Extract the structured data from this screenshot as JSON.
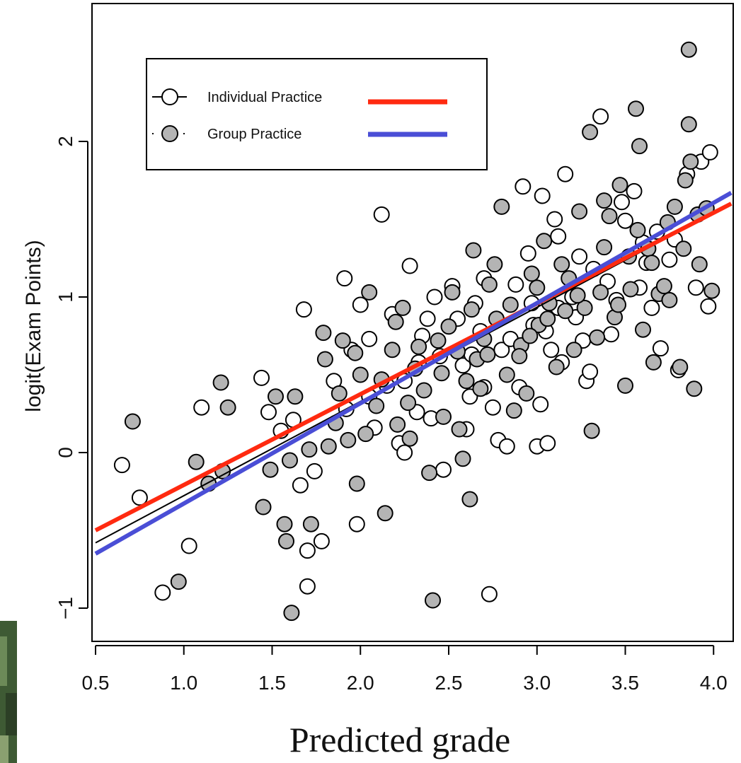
{
  "chart_data": {
    "type": "scatter",
    "title": "",
    "xlabel": "Predicted grade",
    "ylabel": "logit(Exam Points)",
    "xlim": [
      0.5,
      4.1
    ],
    "ylim": [
      -1.2,
      2.85
    ],
    "x_ticks": [
      "0.5",
      "1.0",
      "1.5",
      "2.0",
      "2.5",
      "3.0",
      "3.5",
      "4.0"
    ],
    "y_ticks": [
      "−1",
      "0",
      "1",
      "2"
    ],
    "grid": false,
    "legend_position": "top-left",
    "series": [
      {
        "name": "Individual Practice",
        "marker_fill": "#ffffff",
        "line_color": "#ff2a10",
        "fit": {
          "x": [
            0.5,
            4.1
          ],
          "y": [
            -0.5,
            1.6
          ]
        },
        "points": [
          [
            0.65,
            -0.08
          ],
          [
            0.75,
            -0.29
          ],
          [
            0.88,
            -0.9
          ],
          [
            1.03,
            -0.6
          ],
          [
            1.1,
            0.29
          ],
          [
            1.44,
            0.48
          ],
          [
            1.48,
            0.26
          ],
          [
            1.55,
            0.14
          ],
          [
            1.62,
            0.21
          ],
          [
            1.66,
            -0.21
          ],
          [
            1.68,
            0.92
          ],
          [
            1.7,
            -0.63
          ],
          [
            1.7,
            -0.86
          ],
          [
            1.74,
            -0.12
          ],
          [
            1.78,
            -0.57
          ],
          [
            1.91,
            1.12
          ],
          [
            2.0,
            0.95
          ],
          [
            2.05,
            0.73
          ],
          [
            2.12,
            1.53
          ],
          [
            2.18,
            0.89
          ],
          [
            2.28,
            1.2
          ],
          [
            2.33,
            0.58
          ],
          [
            2.38,
            0.86
          ],
          [
            2.42,
            1.0
          ],
          [
            2.47,
            -0.11
          ],
          [
            2.52,
            1.07
          ],
          [
            2.58,
            0.56
          ],
          [
            2.63,
            0.63
          ],
          [
            2.68,
            0.78
          ],
          [
            2.73,
            -0.91
          ],
          [
            2.78,
            0.08
          ],
          [
            2.83,
            0.04
          ],
          [
            2.88,
            1.08
          ],
          [
            2.92,
            1.71
          ],
          [
            2.97,
            0.96
          ],
          [
            3.0,
            0.04
          ],
          [
            3.03,
            1.65
          ],
          [
            3.06,
            0.06
          ],
          [
            3.08,
            0.66
          ],
          [
            3.12,
            0.93
          ],
          [
            3.16,
            1.79
          ],
          [
            3.2,
            1.0
          ],
          [
            3.24,
            1.26
          ],
          [
            3.28,
            0.46
          ],
          [
            3.32,
            1.18
          ],
          [
            3.36,
            2.16
          ],
          [
            3.4,
            1.1
          ],
          [
            3.45,
            0.98
          ],
          [
            3.5,
            1.49
          ],
          [
            3.55,
            1.68
          ],
          [
            3.6,
            1.35
          ],
          [
            3.65,
            0.93
          ],
          [
            3.7,
            0.67
          ],
          [
            3.75,
            1.24
          ],
          [
            3.8,
            0.53
          ],
          [
            3.85,
            1.79
          ],
          [
            3.9,
            1.06
          ],
          [
            3.93,
            1.87
          ],
          [
            3.97,
            0.94
          ],
          [
            3.98,
            1.93
          ],
          [
            2.25,
            0.46
          ],
          [
            2.35,
            0.75
          ],
          [
            2.55,
            0.86
          ],
          [
            2.62,
            0.36
          ],
          [
            2.7,
            1.12
          ],
          [
            2.8,
            0.66
          ],
          [
            2.9,
            0.42
          ],
          [
            2.95,
            1.28
          ],
          [
            3.05,
            0.78
          ],
          [
            3.14,
            0.58
          ],
          [
            1.95,
            0.66
          ],
          [
            2.05,
            0.36
          ],
          [
            2.15,
            0.43
          ],
          [
            2.22,
            0.06
          ],
          [
            2.45,
            0.62
          ],
          [
            2.6,
            0.15
          ],
          [
            2.75,
            0.29
          ],
          [
            2.85,
            0.73
          ],
          [
            3.22,
            0.87
          ],
          [
            3.3,
            0.52
          ],
          [
            1.85,
            0.46
          ],
          [
            1.92,
            0.28
          ],
          [
            2.08,
            0.16
          ],
          [
            2.32,
            0.26
          ],
          [
            2.65,
            0.96
          ],
          [
            2.98,
            0.82
          ],
          [
            3.1,
            1.5
          ],
          [
            3.42,
            0.76
          ],
          [
            3.58,
            1.06
          ],
          [
            3.68,
            1.42
          ],
          [
            1.98,
            -0.46
          ],
          [
            2.25,
            0.0
          ],
          [
            2.4,
            0.22
          ],
          [
            2.7,
            0.42
          ],
          [
            3.02,
            0.31
          ],
          [
            3.12,
            1.39
          ],
          [
            3.26,
            0.72
          ],
          [
            3.48,
            1.61
          ],
          [
            3.62,
            1.22
          ],
          [
            3.78,
            1.37
          ]
        ]
      },
      {
        "name": "Group Practice",
        "marker_fill": "#b4b4b4",
        "line_color": "#4a4ed6",
        "fit": {
          "x": [
            0.5,
            4.1
          ],
          "y": [
            -0.65,
            1.67
          ]
        },
        "points": [
          [
            0.71,
            0.2
          ],
          [
            0.97,
            -0.83
          ],
          [
            1.07,
            -0.06
          ],
          [
            1.14,
            -0.2
          ],
          [
            1.21,
            0.45
          ],
          [
            1.22,
            -0.12
          ],
          [
            1.25,
            0.29
          ],
          [
            1.45,
            -0.35
          ],
          [
            1.49,
            -0.11
          ],
          [
            1.52,
            0.36
          ],
          [
            1.57,
            -0.46
          ],
          [
            1.58,
            -0.57
          ],
          [
            1.6,
            -0.05
          ],
          [
            1.61,
            -1.03
          ],
          [
            1.63,
            0.36
          ],
          [
            1.71,
            0.02
          ],
          [
            1.72,
            -0.46
          ],
          [
            1.79,
            0.77
          ],
          [
            1.82,
            0.04
          ],
          [
            1.86,
            0.19
          ],
          [
            1.88,
            0.38
          ],
          [
            1.93,
            0.08
          ],
          [
            1.97,
            0.64
          ],
          [
            1.98,
            -0.2
          ],
          [
            2.0,
            0.5
          ],
          [
            2.05,
            1.03
          ],
          [
            2.09,
            0.3
          ],
          [
            2.14,
            -0.39
          ],
          [
            2.18,
            0.66
          ],
          [
            2.21,
            0.18
          ],
          [
            2.24,
            0.93
          ],
          [
            2.28,
            0.09
          ],
          [
            2.31,
            0.54
          ],
          [
            2.36,
            0.4
          ],
          [
            2.39,
            -0.13
          ],
          [
            2.41,
            -0.95
          ],
          [
            2.44,
            0.72
          ],
          [
            2.47,
            0.23
          ],
          [
            2.52,
            1.03
          ],
          [
            2.56,
            0.15
          ],
          [
            2.58,
            -0.04
          ],
          [
            2.6,
            0.46
          ],
          [
            2.62,
            -0.3
          ],
          [
            2.64,
            1.3
          ],
          [
            2.66,
            0.6
          ],
          [
            2.7,
            0.73
          ],
          [
            2.73,
            1.08
          ],
          [
            2.77,
            0.86
          ],
          [
            2.8,
            1.58
          ],
          [
            2.83,
            0.5
          ],
          [
            2.87,
            0.27
          ],
          [
            2.91,
            0.69
          ],
          [
            2.94,
            0.38
          ],
          [
            2.97,
            1.15
          ],
          [
            3.01,
            0.82
          ],
          [
            3.04,
            1.36
          ],
          [
            3.07,
            0.96
          ],
          [
            3.11,
            0.55
          ],
          [
            3.14,
            1.21
          ],
          [
            3.18,
            1.12
          ],
          [
            3.21,
            0.66
          ],
          [
            3.24,
            1.55
          ],
          [
            3.27,
            0.93
          ],
          [
            3.3,
            2.06
          ],
          [
            3.31,
            0.14
          ],
          [
            3.34,
            0.74
          ],
          [
            3.38,
            1.32
          ],
          [
            3.41,
            1.52
          ],
          [
            3.44,
            0.87
          ],
          [
            3.47,
            1.72
          ],
          [
            3.5,
            0.43
          ],
          [
            3.53,
            1.05
          ],
          [
            3.56,
            2.21
          ],
          [
            3.57,
            1.43
          ],
          [
            3.6,
            0.79
          ],
          [
            3.63,
            1.31
          ],
          [
            3.66,
            0.58
          ],
          [
            3.69,
            1.02
          ],
          [
            3.72,
            1.07
          ],
          [
            3.75,
            0.98
          ],
          [
            3.78,
            1.58
          ],
          [
            3.81,
            0.55
          ],
          [
            3.84,
            1.75
          ],
          [
            3.86,
            2.59
          ],
          [
            3.86,
            2.11
          ],
          [
            3.87,
            1.87
          ],
          [
            3.89,
            0.41
          ],
          [
            3.91,
            1.53
          ],
          [
            3.96,
            1.57
          ],
          [
            3.99,
            1.04
          ],
          [
            1.8,
            0.6
          ],
          [
            1.9,
            0.72
          ],
          [
            2.03,
            0.12
          ],
          [
            2.12,
            0.47
          ],
          [
            2.2,
            0.84
          ],
          [
            2.27,
            0.32
          ],
          [
            2.33,
            0.68
          ],
          [
            2.46,
            0.51
          ],
          [
            2.5,
            0.81
          ],
          [
            2.55,
            0.65
          ],
          [
            2.63,
            0.92
          ],
          [
            2.68,
            0.41
          ],
          [
            2.72,
            0.63
          ],
          [
            2.76,
            1.21
          ],
          [
            2.85,
            0.95
          ],
          [
            2.9,
            0.62
          ],
          [
            2.96,
            0.75
          ],
          [
            3.0,
            1.06
          ],
          [
            3.06,
            0.86
          ],
          [
            3.16,
            0.91
          ],
          [
            3.23,
            1.01
          ],
          [
            3.36,
            1.03
          ],
          [
            3.46,
            0.95
          ],
          [
            3.52,
            1.26
          ],
          [
            3.58,
            1.97
          ],
          [
            3.65,
            1.22
          ],
          [
            3.74,
            1.48
          ],
          [
            3.83,
            1.31
          ],
          [
            3.92,
            1.21
          ],
          [
            3.38,
            1.62
          ]
        ]
      }
    ]
  },
  "legend": {
    "items": [
      {
        "label": "Individual Practice",
        "line_color": "#ff2a10",
        "marker_fill": "#ffffff"
      },
      {
        "label": "Group Practice",
        "line_color": "#4a4ed6",
        "marker_fill": "#b4b4b4"
      }
    ]
  }
}
